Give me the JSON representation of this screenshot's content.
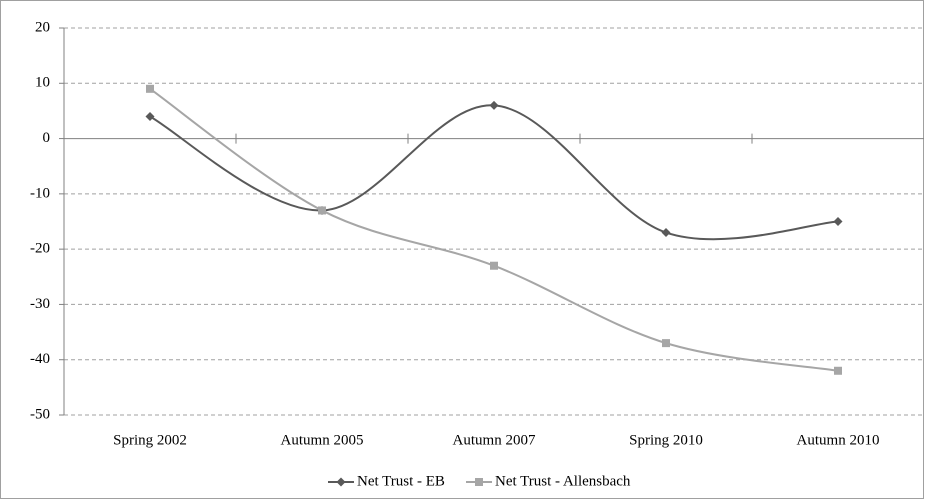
{
  "chart_data": {
    "type": "line",
    "smooth": true,
    "grid": true,
    "legend_position": "bottom",
    "categories": [
      "Spring 2002",
      "Autumn 2005",
      "Autumn 2007",
      "Spring 2010",
      "Autumn 2010"
    ],
    "series": [
      {
        "name": "Net Trust - EB",
        "color": "#595959",
        "marker": "diamond",
        "values": [
          4,
          -13,
          6,
          -17,
          -15
        ]
      },
      {
        "name": "Net Trust - Allensbach",
        "color": "#a6a6a6",
        "marker": "square",
        "values": [
          9,
          -13,
          -23,
          -37,
          -42
        ]
      }
    ],
    "ylim": [
      -50,
      20
    ],
    "yticks": [
      -50,
      -40,
      -30,
      -20,
      -10,
      0,
      10,
      20
    ]
  }
}
